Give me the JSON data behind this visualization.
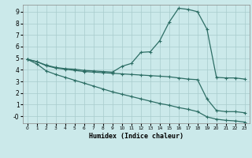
{
  "xlabel": "Humidex (Indice chaleur)",
  "background_color": "#cbe9ea",
  "grid_color": "#a8cccc",
  "line_color": "#2d6e65",
  "xlim": [
    -0.5,
    23.5
  ],
  "ylim": [
    -0.6,
    9.6
  ],
  "xticks": [
    0,
    1,
    2,
    3,
    4,
    5,
    6,
    7,
    8,
    9,
    10,
    11,
    12,
    13,
    14,
    15,
    16,
    17,
    18,
    19,
    20,
    21,
    22,
    23
  ],
  "yticks": [
    0,
    1,
    2,
    3,
    4,
    5,
    6,
    7,
    8,
    9
  ],
  "ytick_labels": [
    "-0",
    "1",
    "2",
    "3",
    "4",
    "5",
    "6",
    "7",
    "8",
    "9"
  ],
  "line1_x": [
    0,
    1,
    2,
    3,
    4,
    5,
    6,
    7,
    8,
    9,
    10,
    11,
    12,
    13,
    14,
    15,
    16,
    17,
    18,
    19,
    20,
    21,
    22,
    23
  ],
  "line1_y": [
    4.9,
    4.7,
    4.4,
    4.2,
    4.1,
    4.05,
    3.95,
    3.9,
    3.85,
    3.8,
    4.3,
    4.55,
    5.5,
    5.55,
    6.5,
    8.1,
    9.3,
    9.2,
    9.0,
    7.5,
    3.35,
    3.3,
    3.3,
    3.2
  ],
  "line2_x": [
    0,
    1,
    2,
    3,
    4,
    5,
    6,
    7,
    8,
    9,
    10,
    11,
    12,
    13,
    14,
    15,
    16,
    17,
    18,
    19,
    20,
    21,
    22,
    23
  ],
  "line2_y": [
    4.9,
    4.7,
    4.35,
    4.15,
    4.05,
    3.95,
    3.85,
    3.8,
    3.75,
    3.7,
    3.65,
    3.6,
    3.55,
    3.5,
    3.45,
    3.4,
    3.3,
    3.2,
    3.15,
    1.5,
    0.5,
    0.4,
    0.4,
    0.3
  ],
  "line3_x": [
    0,
    1,
    2,
    3,
    4,
    5,
    6,
    7,
    8,
    9,
    10,
    11,
    12,
    13,
    14,
    15,
    16,
    17,
    18,
    19,
    20,
    21,
    22,
    23
  ],
  "line3_y": [
    4.9,
    4.5,
    3.9,
    3.6,
    3.35,
    3.1,
    2.85,
    2.6,
    2.35,
    2.1,
    1.9,
    1.7,
    1.5,
    1.3,
    1.1,
    0.95,
    0.75,
    0.6,
    0.4,
    -0.05,
    -0.25,
    -0.35,
    -0.4,
    -0.5
  ]
}
